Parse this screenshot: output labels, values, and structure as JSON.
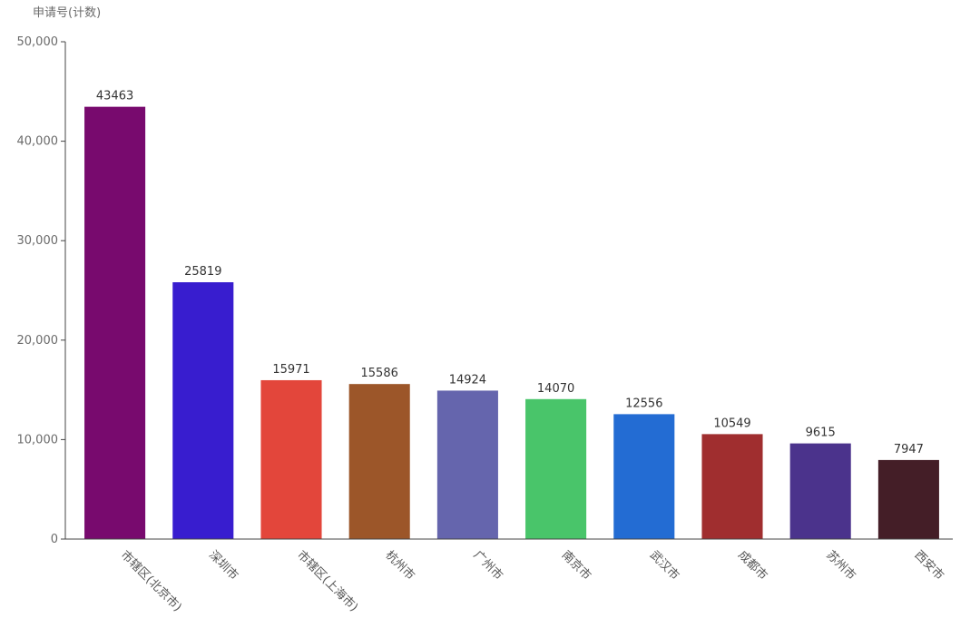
{
  "chart_data": {
    "type": "bar",
    "ylabel": "申请号(计数)",
    "xlabel": "",
    "ylim": [
      0,
      50000
    ],
    "yticks": [
      0,
      10000,
      20000,
      30000,
      40000,
      50000
    ],
    "ytick_labels": [
      "0",
      "10,000",
      "20,000",
      "30,000",
      "40,000",
      "50,000"
    ],
    "categories": [
      "市辖区(北京市)",
      "深圳市",
      "市辖区(上海市)",
      "杭州市",
      "广州市",
      "南京市",
      "武汉市",
      "成都市",
      "苏州市",
      "西安市"
    ],
    "values": [
      43463,
      25819,
      15971,
      15586,
      14924,
      14070,
      12556,
      10549,
      9615,
      7947
    ],
    "colors": [
      "#780A6E",
      "#381DCF",
      "#E3463B",
      "#9C5629",
      "#6565AD",
      "#49C56A",
      "#236CD3",
      "#A02E2F",
      "#4B338C",
      "#441E27"
    ],
    "grid": false,
    "data_labels": true
  }
}
